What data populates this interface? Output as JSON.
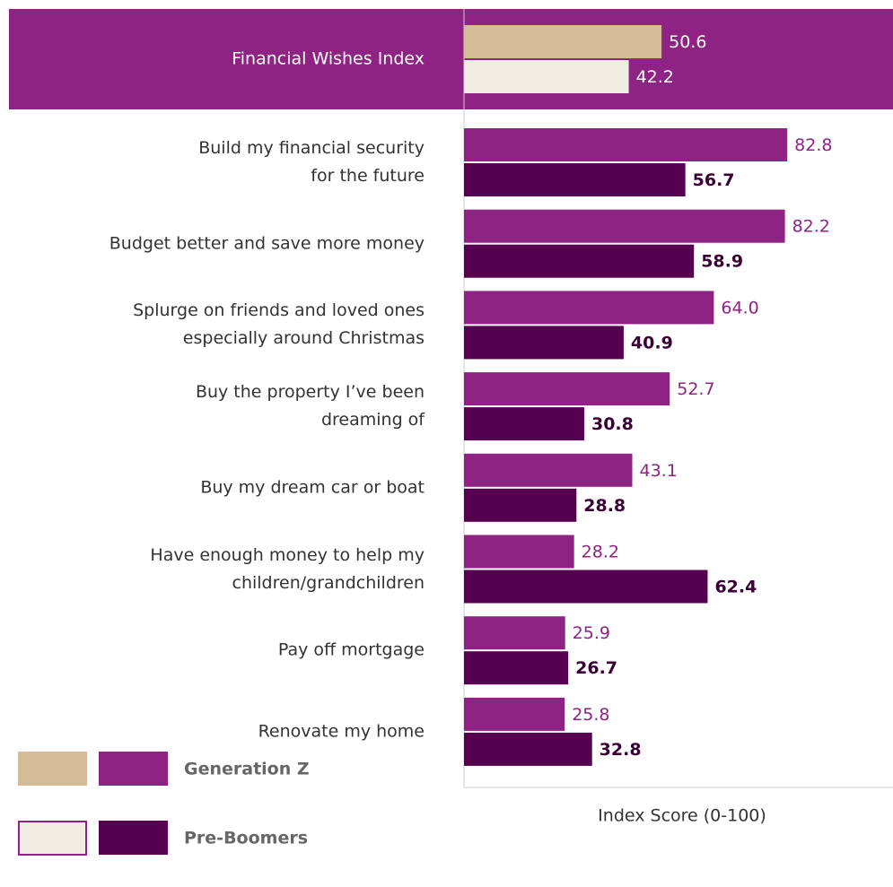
{
  "chart_data": {
    "type": "hbar",
    "categories": [
      "Financial Wishes Index",
      "Build my financial security\nfor the future",
      "Budget better and save more money",
      "Splurge on friends and loved ones\nespecially around Christmas",
      "Buy the property I’ve been\ndreaming of",
      "Buy my dream car or boat",
      "Have enough money to help my\nchildren/grandchildren",
      "Pay off mortgage",
      "Renovate my home"
    ],
    "series": [
      {
        "name": "Generation Z",
        "color": "#8e2383",
        "index_color": "#d4bc96",
        "label_color": "#8e2383",
        "values": [
          50.6,
          82.8,
          82.2,
          64.0,
          52.7,
          43.1,
          28.2,
          25.9,
          25.8
        ],
        "value_labels": [
          "50.6",
          "82.8",
          "82.2",
          "64.0",
          "52.7",
          "43.1",
          "28.2",
          "25.9",
          "25.8"
        ]
      },
      {
        "name": "Pre-Boomers",
        "color": "#560050",
        "index_color": "#f0eee4",
        "label_color": "#3a0035",
        "values": [
          42.2,
          56.7,
          58.9,
          40.9,
          30.8,
          28.8,
          62.4,
          26.7,
          32.8
        ],
        "value_labels": [
          "42.2",
          "56.7",
          "58.9",
          "40.9",
          "30.8",
          "28.8",
          "62.4",
          "26.7",
          "32.8"
        ]
      }
    ],
    "xlim": [
      0,
      100
    ],
    "xlabel": "Index Score (0-100)"
  }
}
